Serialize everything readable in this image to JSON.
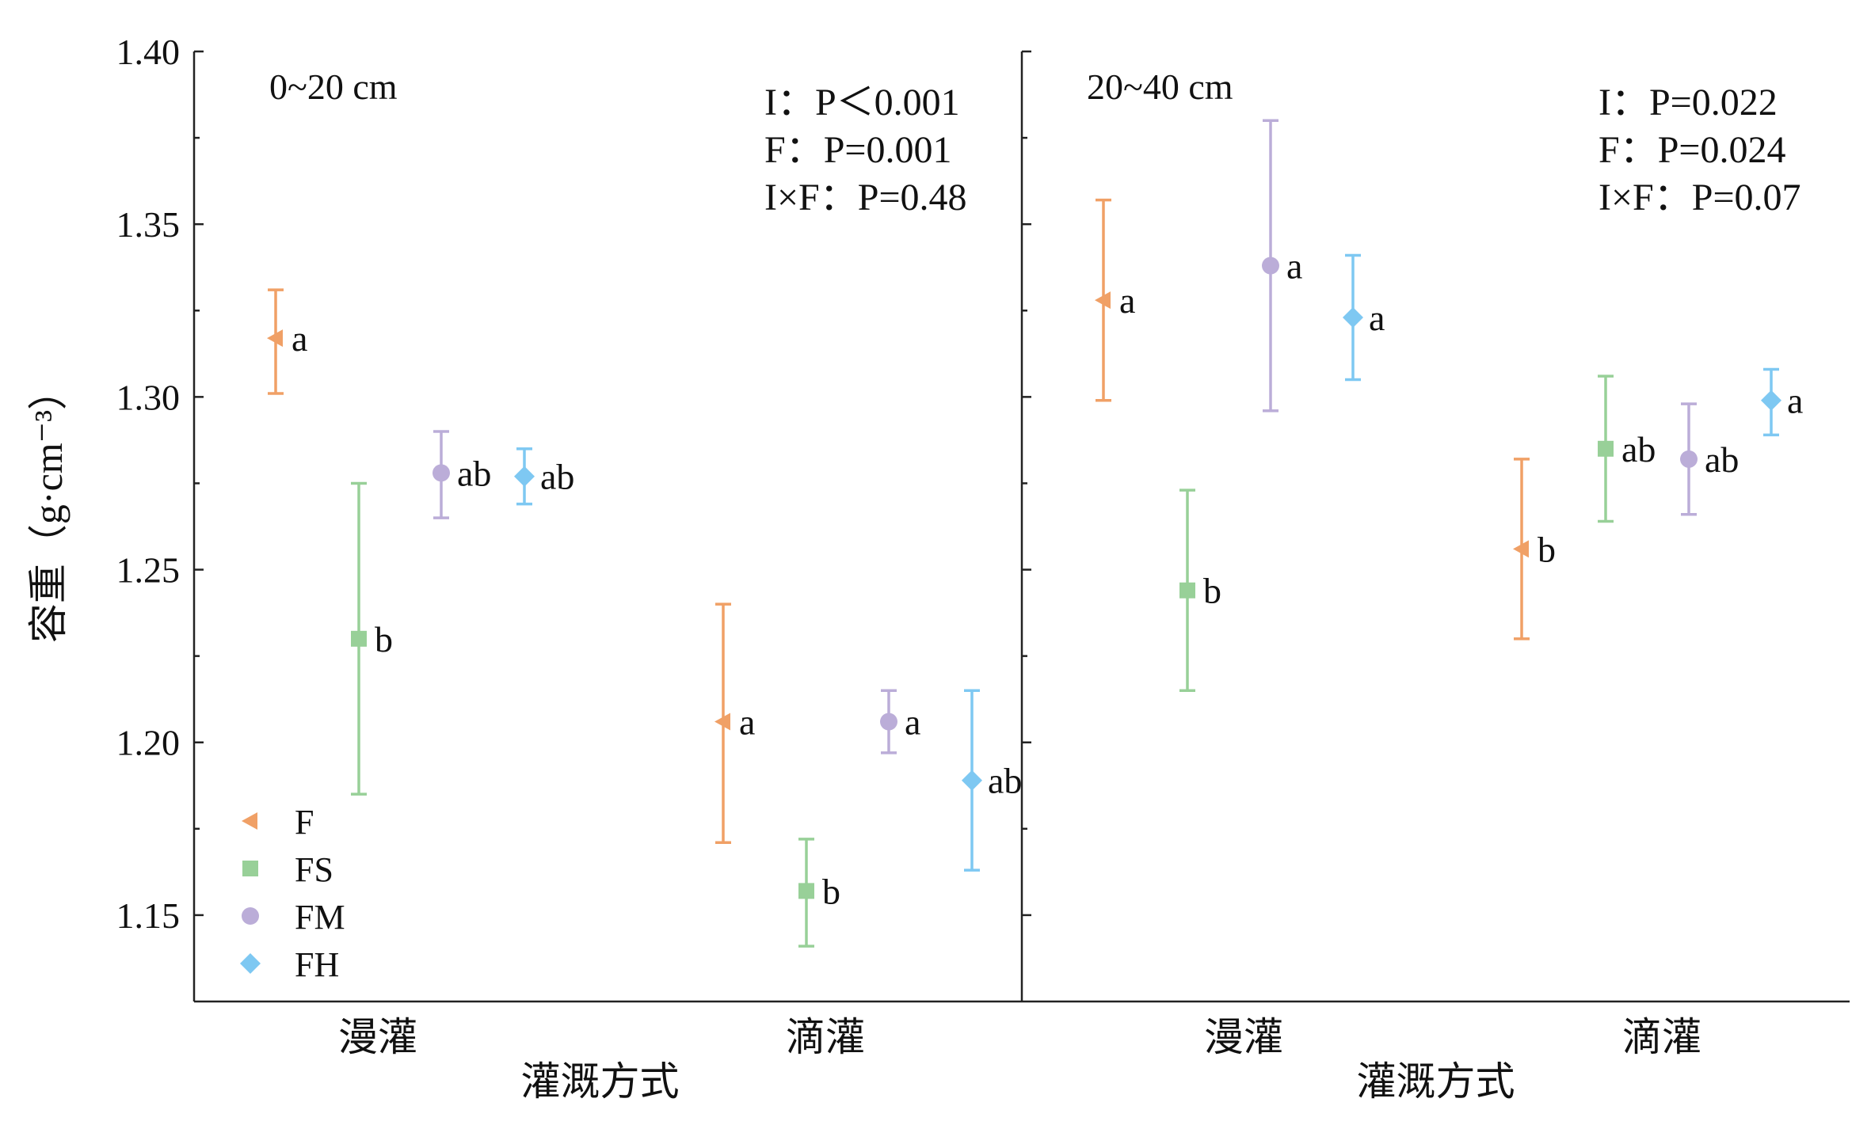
{
  "chart_data": {
    "type": "scatter",
    "subtype": "dot-with-error-bars",
    "ylabel": "容重（g·cm⁻³）",
    "xlabel": "灌溉方式",
    "ylim": [
      1.125,
      1.4
    ],
    "yticks": [
      "1.15",
      "1.20",
      "1.25",
      "1.30",
      "1.35",
      "1.40"
    ],
    "categories": [
      "漫灌",
      "滴灌"
    ],
    "legend": {
      "position": "bottom-left of first panel",
      "entries": [
        {
          "name": "F",
          "color": "#F0A066",
          "marker": "triangle-left"
        },
        {
          "name": "FS",
          "color": "#98D098",
          "marker": "square"
        },
        {
          "name": "FM",
          "color": "#BBADD8",
          "marker": "circle"
        },
        {
          "name": "FH",
          "color": "#7EC8F2",
          "marker": "diamond"
        }
      ]
    },
    "panels": [
      {
        "label": "0~20 cm",
        "stats": [
          "I：P＜0.001",
          "F：P=0.001",
          "I×F：P=0.48"
        ],
        "series": [
          {
            "name": "F",
            "values": [
              1.317,
              1.206
            ],
            "err_low": [
              1.301,
              1.171
            ],
            "err_high": [
              1.331,
              1.24
            ],
            "letters": [
              "a",
              "a"
            ]
          },
          {
            "name": "FS",
            "values": [
              1.23,
              1.157
            ],
            "err_low": [
              1.185,
              1.141
            ],
            "err_high": [
              1.275,
              1.172
            ],
            "letters": [
              "b",
              "b"
            ]
          },
          {
            "name": "FM",
            "values": [
              1.278,
              1.206
            ],
            "err_low": [
              1.265,
              1.197
            ],
            "err_high": [
              1.29,
              1.215
            ],
            "letters": [
              "ab",
              "a"
            ]
          },
          {
            "name": "FH",
            "values": [
              1.277,
              1.189
            ],
            "err_low": [
              1.269,
              1.163
            ],
            "err_high": [
              1.285,
              1.215
            ],
            "letters": [
              "ab",
              "ab"
            ]
          }
        ]
      },
      {
        "label": "20~40 cm",
        "stats": [
          "I：P=0.022",
          "F：P=0.024",
          "I×F：P=0.07"
        ],
        "series": [
          {
            "name": "F",
            "values": [
              1.328,
              1.256
            ],
            "err_low": [
              1.299,
              1.23
            ],
            "err_high": [
              1.357,
              1.282
            ],
            "letters": [
              "a",
              "b"
            ]
          },
          {
            "name": "FS",
            "values": [
              1.244,
              1.285
            ],
            "err_low": [
              1.215,
              1.264
            ],
            "err_high": [
              1.273,
              1.306
            ],
            "letters": [
              "b",
              "ab"
            ]
          },
          {
            "name": "FM",
            "values": [
              1.338,
              1.282
            ],
            "err_low": [
              1.296,
              1.266
            ],
            "err_high": [
              1.38,
              1.298
            ],
            "letters": [
              "a",
              "ab"
            ]
          },
          {
            "name": "FH",
            "values": [
              1.323,
              1.299
            ],
            "err_low": [
              1.305,
              1.289
            ],
            "err_high": [
              1.341,
              1.308
            ],
            "letters": [
              "a",
              "a"
            ]
          }
        ]
      }
    ]
  }
}
